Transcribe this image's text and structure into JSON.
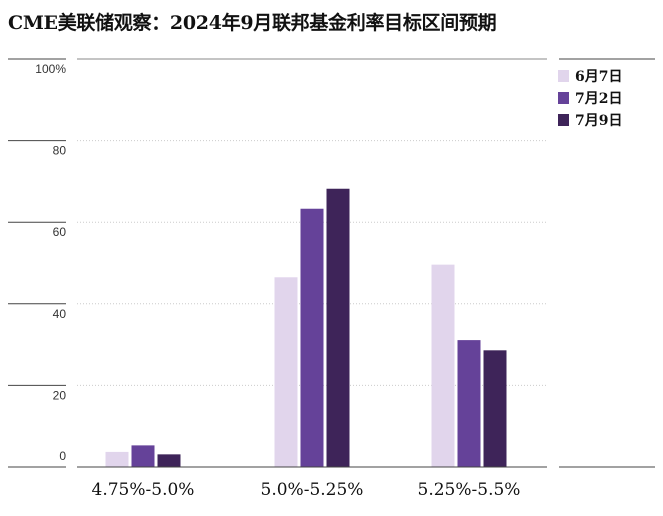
{
  "title": "CME美联储观察：2024年9月联邦基金利率目标区间预期",
  "chart_data": {
    "type": "bar",
    "categories": [
      "4.75%-5.0%",
      "5.0%-5.25%",
      "5.25%-5.5%"
    ],
    "series": [
      {
        "name": "6月7日",
        "color": "#e1d5ec",
        "values": [
          3.7,
          46.5,
          49.6
        ]
      },
      {
        "name": "7月2日",
        "color": "#654299",
        "values": [
          5.3,
          63.3,
          31.1
        ]
      },
      {
        "name": "7月9日",
        "color": "#3e2459",
        "values": [
          3.1,
          68.2,
          28.6
        ]
      }
    ],
    "ylim": [
      0,
      100
    ],
    "yticks": [
      0,
      20,
      40,
      60,
      80,
      100
    ],
    "ytick_labels": [
      "0",
      "20",
      "40",
      "60",
      "80",
      "100%"
    ],
    "grid": true,
    "legend": "top-right"
  }
}
